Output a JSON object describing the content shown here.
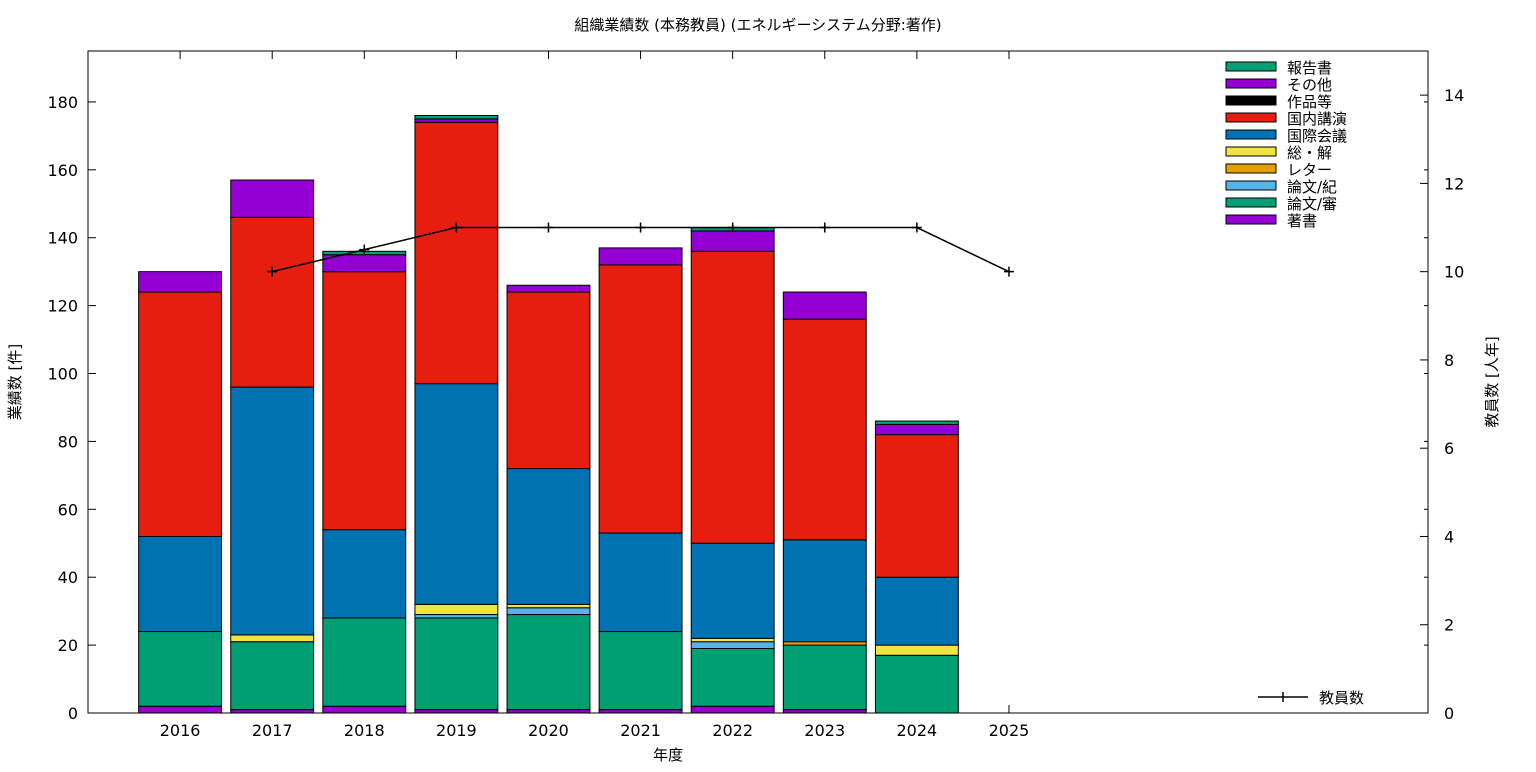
{
  "chart_data": {
    "type": "bar",
    "stacked": true,
    "title": "組織業績数 (本務教員) (エネルギーシステム分野:著作)",
    "xlabel": "年度",
    "ylabel": "業績数 [件]",
    "y2label": "教員数 [人年]",
    "ylim": [
      0,
      195
    ],
    "y2lim": [
      0,
      15
    ],
    "yticks": [
      0,
      20,
      40,
      60,
      80,
      100,
      120,
      140,
      160,
      180
    ],
    "y2ticks": [
      0,
      2,
      4,
      6,
      8,
      10,
      12,
      14
    ],
    "categories": [
      "2016",
      "2017",
      "2018",
      "2019",
      "2020",
      "2021",
      "2022",
      "2023",
      "2024",
      "2025"
    ],
    "grid": false,
    "legend_position": "top-right",
    "series": [
      {
        "name": "著書",
        "color": "#9400d3",
        "values": [
          2,
          1,
          2,
          1,
          1,
          1,
          2,
          1,
          0,
          0
        ]
      },
      {
        "name": "論文/審",
        "color": "#009e73",
        "values": [
          22,
          20,
          26,
          27,
          28,
          23,
          17,
          19,
          17,
          0
        ]
      },
      {
        "name": "論文/紀",
        "color": "#56b4e9",
        "values": [
          0,
          0,
          0,
          1,
          2,
          0,
          2,
          0,
          0,
          0
        ]
      },
      {
        "name": "レター",
        "color": "#e69f00",
        "values": [
          0,
          0,
          0,
          0,
          0,
          0,
          0,
          1,
          0,
          0
        ]
      },
      {
        "name": "総・解",
        "color": "#f0e442",
        "values": [
          0,
          2,
          0,
          3,
          1,
          0,
          1,
          0,
          3,
          0
        ]
      },
      {
        "name": "国際会議",
        "color": "#0072b2",
        "values": [
          28,
          73,
          26,
          65,
          40,
          29,
          28,
          30,
          20,
          0
        ]
      },
      {
        "name": "国内講演",
        "color": "#e51e10",
        "values": [
          72,
          50,
          76,
          77,
          52,
          79,
          86,
          65,
          42,
          0
        ]
      },
      {
        "name": "作品等",
        "color": "#000000",
        "values": [
          0,
          0,
          0,
          0,
          0,
          0,
          0,
          0,
          0,
          0
        ]
      },
      {
        "name": "その他",
        "color": "#9400d3",
        "values": [
          6,
          11,
          5,
          1,
          2,
          5,
          6,
          8,
          3,
          0
        ]
      },
      {
        "name": "報告書",
        "color": "#009e73",
        "values": [
          0,
          0,
          1,
          1,
          0,
          0,
          1,
          0,
          1,
          0
        ]
      }
    ],
    "line_series": {
      "name": "教員数",
      "color": "#000000",
      "axis": "y2",
      "values": [
        null,
        10,
        10.5,
        11,
        11,
        11,
        11,
        11,
        11,
        10
      ]
    }
  }
}
